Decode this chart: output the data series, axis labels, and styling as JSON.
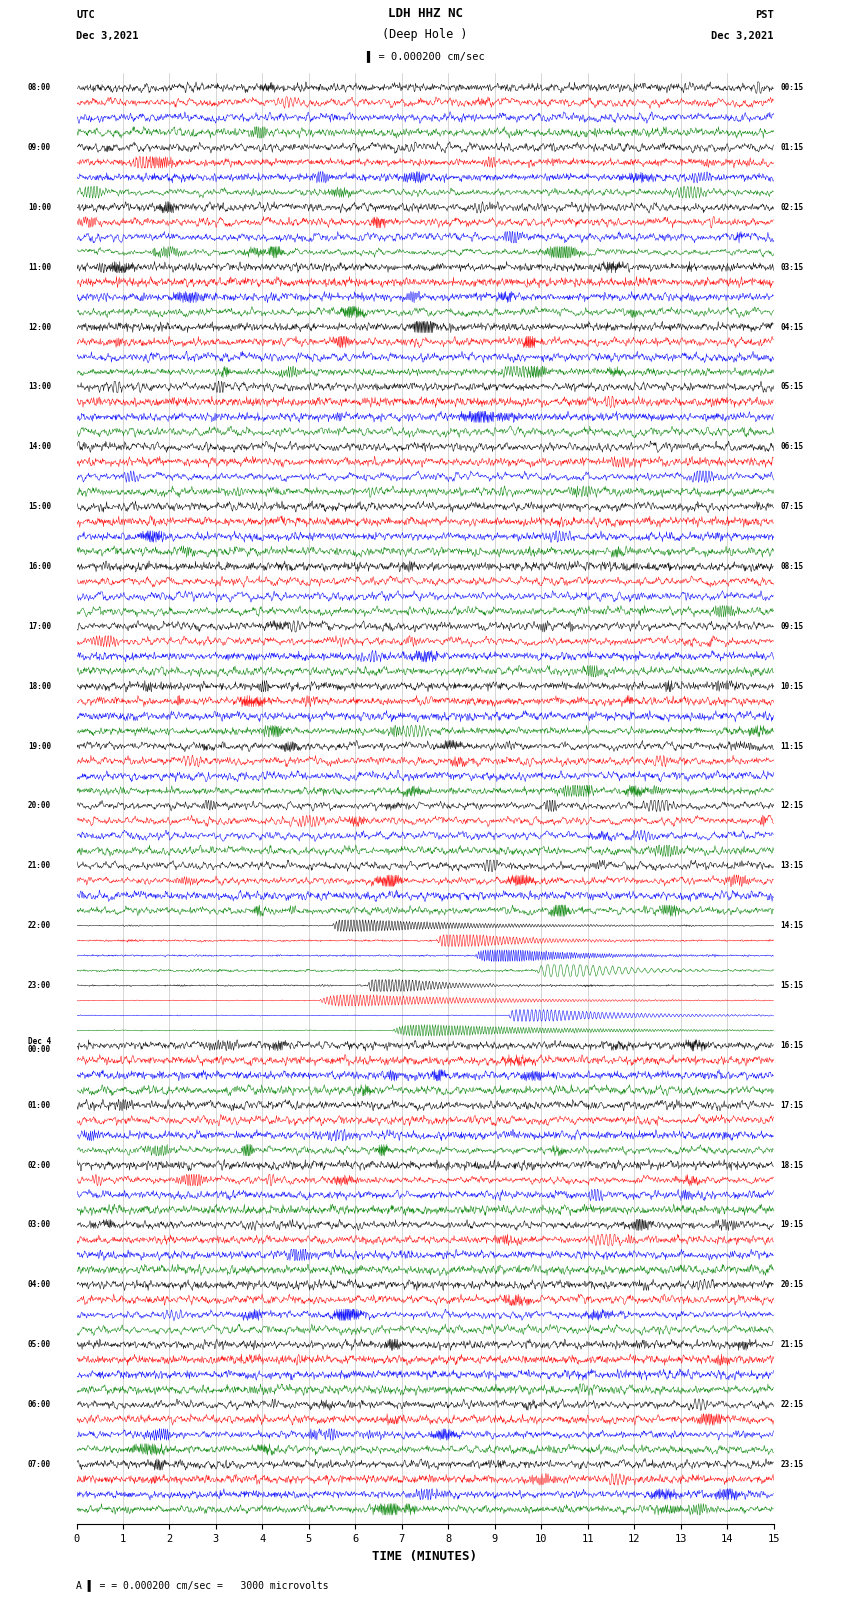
{
  "title_line1": "LDH HHZ NC",
  "title_line2": "(Deep Hole )",
  "scale_label": "= 0.000200 cm/sec",
  "footer_label": "= 0.000200 cm/sec =   3000 microvolts",
  "utc_label": "UTC",
  "utc_date": "Dec 3,2021",
  "pst_label": "PST",
  "pst_date": "Dec 3,2021",
  "xlabel": "TIME (MINUTES)",
  "time_minutes": 15,
  "colors": [
    "black",
    "red",
    "blue",
    "green"
  ],
  "utc_hour_labels": [
    "08:00",
    "09:00",
    "10:00",
    "11:00",
    "12:00",
    "13:00",
    "14:00",
    "15:00",
    "16:00",
    "17:00",
    "18:00",
    "19:00",
    "20:00",
    "21:00",
    "22:00",
    "23:00",
    "Dec 4\n00:00",
    "01:00",
    "02:00",
    "03:00",
    "04:00",
    "05:00",
    "06:00",
    "07:00"
  ],
  "pst_hour_labels": [
    "00:15",
    "01:15",
    "02:15",
    "03:15",
    "04:15",
    "05:15",
    "06:15",
    "07:15",
    "08:15",
    "09:15",
    "10:15",
    "11:15",
    "12:15",
    "13:15",
    "14:15",
    "15:15",
    "16:15",
    "17:15",
    "18:15",
    "19:15",
    "20:15",
    "21:15",
    "22:15",
    "23:15"
  ],
  "bg_color": "white",
  "seed": 42,
  "n_hours": 24,
  "n_traces_per_hour": 4,
  "n_points": 1500,
  "eq_hour": 14,
  "eq_hour2": 15
}
